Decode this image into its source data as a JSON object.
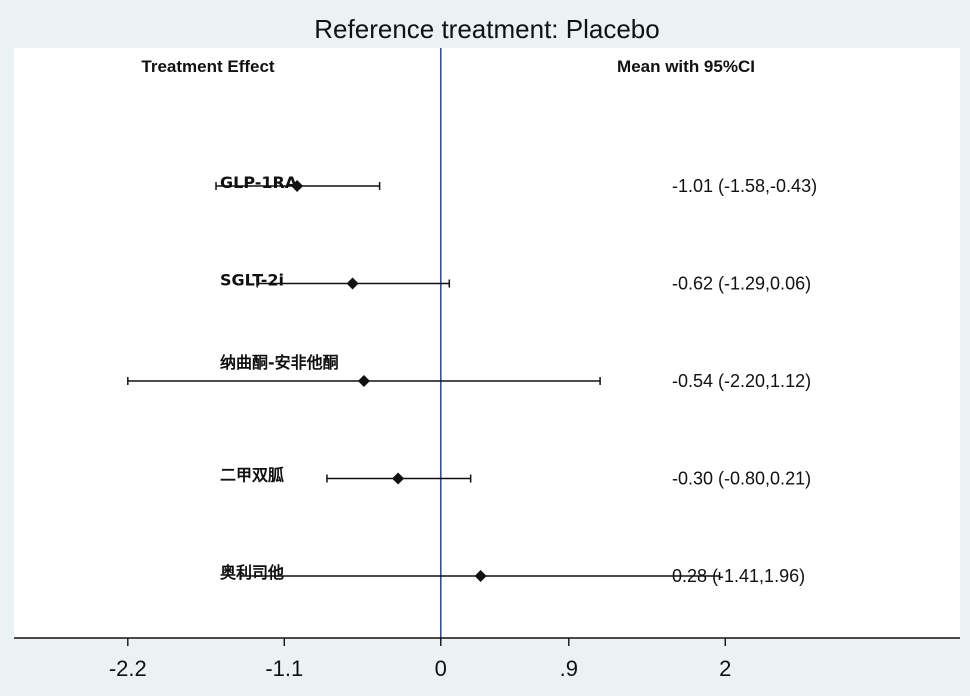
{
  "chart_data": {
    "type": "forest",
    "title": "Reference treatment: Placebo",
    "left_header": "Treatment Effect",
    "right_header": "Mean with 95%CI",
    "reference_value": 0,
    "reference_line_color": "#2e4fa3",
    "xlim": [
      -3.0,
      3.65
    ],
    "x_ticks": [
      {
        "value": -2.2,
        "label": "-2.2"
      },
      {
        "value": -1.1,
        "label": "-1.1"
      },
      {
        "value": 0,
        "label": "0"
      },
      {
        "value": 0.9,
        "label": ".9"
      },
      {
        "value": 2,
        "label": "2"
      }
    ],
    "rows": [
      {
        "label": "GLP-1RA",
        "mean": -1.01,
        "lower": -1.58,
        "upper": -0.43,
        "ci_text": "-1.01 (-1.58,-0.43)"
      },
      {
        "label": "SGLT-2i",
        "mean": -0.62,
        "lower": -1.29,
        "upper": 0.06,
        "ci_text": "-0.62 (-1.29,0.06)"
      },
      {
        "label": "纳曲酮-安非他酮",
        "mean": -0.54,
        "lower": -2.2,
        "upper": 1.12,
        "ci_text": "-0.54 (-2.20,1.12)"
      },
      {
        "label": "二甲双胍",
        "mean": -0.3,
        "lower": -0.8,
        "upper": 0.21,
        "ci_text": "-0.30 (-0.80,0.21)"
      },
      {
        "label": "奥利司他",
        "mean": 0.28,
        "lower": -1.41,
        "upper": 1.96,
        "ci_text": "0.28 (-1.41,1.96)"
      }
    ]
  }
}
